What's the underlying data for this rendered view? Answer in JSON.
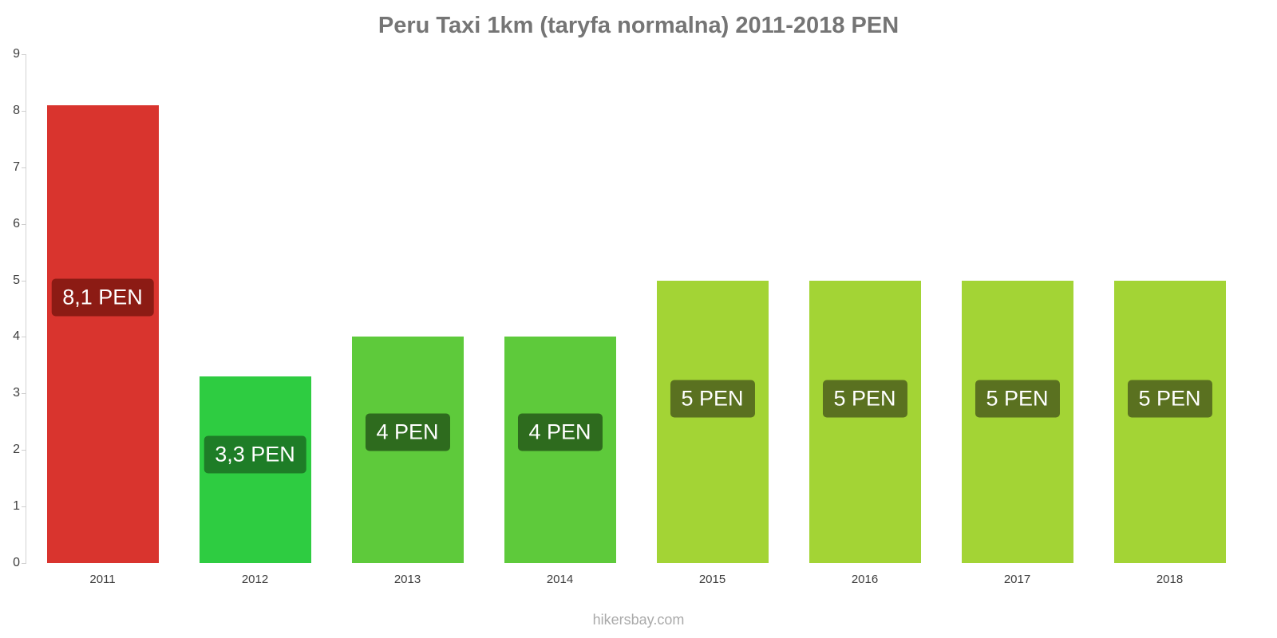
{
  "title": "Peru Taxi 1km (taryfa normalna) 2011-2018 PEN",
  "footer": "hikersbay.com",
  "chart_data": {
    "type": "bar",
    "title": "Peru Taxi 1km (taryfa normalna) 2011-2018 PEN",
    "categories": [
      "2011",
      "2012",
      "2013",
      "2014",
      "2015",
      "2016",
      "2017",
      "2018"
    ],
    "values": [
      8.1,
      3.3,
      4,
      4,
      5,
      5,
      5,
      5
    ],
    "value_labels": [
      "8,1 PEN",
      "3,3 PEN",
      "4 PEN",
      "4 PEN",
      "5 PEN",
      "5 PEN",
      "5 PEN",
      "5 PEN"
    ],
    "bar_colors": [
      "#d9342e",
      "#2ecc41",
      "#5eca3b",
      "#5eca3b",
      "#a3d435",
      "#a3d435",
      "#a3d435",
      "#a3d435"
    ],
    "label_box_colors": [
      "#8c1b14",
      "#1e7d27",
      "#2e6b1e",
      "#2e6b1e",
      "#5a7120",
      "#5a7120",
      "#5a7120",
      "#5a7120"
    ],
    "xlabel": "",
    "ylabel": "",
    "ylim": [
      0,
      9
    ],
    "yticks": [
      0,
      1,
      2,
      3,
      4,
      5,
      6,
      7,
      8,
      9
    ],
    "grid": false,
    "legend": false
  }
}
